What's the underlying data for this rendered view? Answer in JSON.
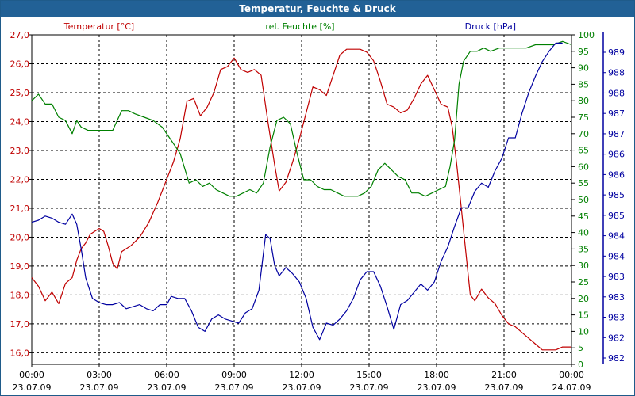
{
  "window": {
    "title": "Temperatur, Feuchte & Druck"
  },
  "colors": {
    "temperature": "#c00000",
    "humidity": "#008000",
    "pressure": "#0000a0",
    "grid": "#000000",
    "title_bar": "#226196"
  },
  "chart_data": {
    "type": "line",
    "title": "Temperatur, Feuchte & Druck",
    "x": {
      "range_hours": [
        0,
        24
      ],
      "ticks": [
        {
          "h": 0,
          "time": "00:00",
          "date": "23.07.09"
        },
        {
          "h": 3,
          "time": "03:00",
          "date": "23.07.09"
        },
        {
          "h": 6,
          "time": "06:00",
          "date": "23.07.09"
        },
        {
          "h": 9,
          "time": "09:00",
          "date": "23.07.09"
        },
        {
          "h": 12,
          "time": "12:00",
          "date": "23.07.09"
        },
        {
          "h": 15,
          "time": "15:00",
          "date": "23.07.09"
        },
        {
          "h": 18,
          "time": "18:00",
          "date": "23.07.09"
        },
        {
          "h": 21,
          "time": "21:00",
          "date": "23.07.09"
        },
        {
          "h": 24,
          "time": "00:00",
          "date": "24.07.09"
        }
      ]
    },
    "axes": {
      "temperature": {
        "label": "Temperatur [°C]",
        "range": [
          15.6,
          27.0
        ],
        "ticks": [
          "16,0",
          "17,0",
          "18,0",
          "19,0",
          "20,0",
          "21,0",
          "22,0",
          "23,0",
          "24,0",
          "25,0",
          "26,0",
          "27,0"
        ]
      },
      "humidity": {
        "label": "rel. Feuchte [%]",
        "range": [
          0,
          100
        ],
        "ticks": [
          "0",
          "5",
          "10",
          "15",
          "20",
          "25",
          "30",
          "35",
          "40",
          "45",
          "50",
          "55",
          "60",
          "65",
          "70",
          "75",
          "80",
          "85",
          "90",
          "95",
          "100"
        ]
      },
      "pressure": {
        "label": "Druck [hPa]",
        "range": [
          981.5,
          989.5
        ],
        "ticks": [
          "982",
          "982",
          "983",
          "983",
          "983",
          "984",
          "984",
          "985",
          "985",
          "986",
          "986",
          "987",
          "987",
          "988",
          "988",
          "989"
        ]
      }
    },
    "grid": true,
    "series": [
      {
        "name": "Temperatur",
        "axis": "temperature",
        "points": [
          [
            0.0,
            18.6
          ],
          [
            0.3,
            18.3
          ],
          [
            0.6,
            17.8
          ],
          [
            0.9,
            18.1
          ],
          [
            1.2,
            17.7
          ],
          [
            1.5,
            18.4
          ],
          [
            1.8,
            18.6
          ],
          [
            2.0,
            19.2
          ],
          [
            2.2,
            19.6
          ],
          [
            2.4,
            19.8
          ],
          [
            2.6,
            20.1
          ],
          [
            2.8,
            20.2
          ],
          [
            3.0,
            20.3
          ],
          [
            3.2,
            20.2
          ],
          [
            3.4,
            19.7
          ],
          [
            3.6,
            19.1
          ],
          [
            3.8,
            18.9
          ],
          [
            4.0,
            19.5
          ],
          [
            4.4,
            19.7
          ],
          [
            4.8,
            20.0
          ],
          [
            5.2,
            20.5
          ],
          [
            5.6,
            21.2
          ],
          [
            6.0,
            22.0
          ],
          [
            6.3,
            22.6
          ],
          [
            6.6,
            23.4
          ],
          [
            6.9,
            24.7
          ],
          [
            7.2,
            24.8
          ],
          [
            7.5,
            24.2
          ],
          [
            7.8,
            24.5
          ],
          [
            8.1,
            25.0
          ],
          [
            8.4,
            25.8
          ],
          [
            8.7,
            25.9
          ],
          [
            9.0,
            26.2
          ],
          [
            9.3,
            25.8
          ],
          [
            9.6,
            25.7
          ],
          [
            9.9,
            25.8
          ],
          [
            10.2,
            25.6
          ],
          [
            10.5,
            24.0
          ],
          [
            10.8,
            22.5
          ],
          [
            11.0,
            21.6
          ],
          [
            11.3,
            21.9
          ],
          [
            11.6,
            22.6
          ],
          [
            11.9,
            23.4
          ],
          [
            12.2,
            24.3
          ],
          [
            12.5,
            25.2
          ],
          [
            12.8,
            25.1
          ],
          [
            13.1,
            24.9
          ],
          [
            13.4,
            25.6
          ],
          [
            13.7,
            26.3
          ],
          [
            14.0,
            26.5
          ],
          [
            14.3,
            26.5
          ],
          [
            14.6,
            26.5
          ],
          [
            14.9,
            26.4
          ],
          [
            15.2,
            26.1
          ],
          [
            15.5,
            25.4
          ],
          [
            15.8,
            24.6
          ],
          [
            16.1,
            24.5
          ],
          [
            16.4,
            24.3
          ],
          [
            16.7,
            24.4
          ],
          [
            17.0,
            24.8
          ],
          [
            17.3,
            25.3
          ],
          [
            17.6,
            25.6
          ],
          [
            17.9,
            25.1
          ],
          [
            18.2,
            24.6
          ],
          [
            18.5,
            24.5
          ],
          [
            18.7,
            23.8
          ],
          [
            18.9,
            22.5
          ],
          [
            19.1,
            21.0
          ],
          [
            19.3,
            19.5
          ],
          [
            19.5,
            18.0
          ],
          [
            19.7,
            17.8
          ],
          [
            20.0,
            18.2
          ],
          [
            20.3,
            17.9
          ],
          [
            20.6,
            17.7
          ],
          [
            20.9,
            17.3
          ],
          [
            21.2,
            17.0
          ],
          [
            21.5,
            16.9
          ],
          [
            21.8,
            16.7
          ],
          [
            22.1,
            16.5
          ],
          [
            22.4,
            16.3
          ],
          [
            22.7,
            16.1
          ],
          [
            23.0,
            16.1
          ],
          [
            23.3,
            16.1
          ],
          [
            23.6,
            16.2
          ],
          [
            24.0,
            16.2
          ]
        ]
      },
      {
        "name": "rel. Feuchte",
        "axis": "humidity",
        "points": [
          [
            0.0,
            80
          ],
          [
            0.3,
            82
          ],
          [
            0.6,
            79
          ],
          [
            0.9,
            79
          ],
          [
            1.2,
            75
          ],
          [
            1.5,
            74
          ],
          [
            1.8,
            70
          ],
          [
            2.0,
            74
          ],
          [
            2.2,
            72
          ],
          [
            2.5,
            71
          ],
          [
            2.8,
            71
          ],
          [
            3.2,
            71
          ],
          [
            3.6,
            71
          ],
          [
            4.0,
            77
          ],
          [
            4.3,
            77
          ],
          [
            4.6,
            76
          ],
          [
            5.0,
            75
          ],
          [
            5.4,
            74
          ],
          [
            5.8,
            72
          ],
          [
            6.2,
            68
          ],
          [
            6.6,
            64
          ],
          [
            7.0,
            55
          ],
          [
            7.3,
            56
          ],
          [
            7.6,
            54
          ],
          [
            7.9,
            55
          ],
          [
            8.2,
            53
          ],
          [
            8.5,
            52
          ],
          [
            8.8,
            51
          ],
          [
            9.1,
            51
          ],
          [
            9.4,
            52
          ],
          [
            9.7,
            53
          ],
          [
            10.0,
            52
          ],
          [
            10.3,
            55
          ],
          [
            10.6,
            66
          ],
          [
            10.9,
            74
          ],
          [
            11.2,
            75
          ],
          [
            11.5,
            73
          ],
          [
            11.8,
            64
          ],
          [
            12.1,
            56
          ],
          [
            12.4,
            56
          ],
          [
            12.7,
            54
          ],
          [
            13.0,
            53
          ],
          [
            13.3,
            53
          ],
          [
            13.6,
            52
          ],
          [
            13.9,
            51
          ],
          [
            14.2,
            51
          ],
          [
            14.5,
            51
          ],
          [
            14.8,
            52
          ],
          [
            15.1,
            54
          ],
          [
            15.4,
            59
          ],
          [
            15.7,
            61
          ],
          [
            16.0,
            59
          ],
          [
            16.3,
            57
          ],
          [
            16.6,
            56
          ],
          [
            16.9,
            52
          ],
          [
            17.2,
            52
          ],
          [
            17.5,
            51
          ],
          [
            17.8,
            52
          ],
          [
            18.1,
            53
          ],
          [
            18.4,
            54
          ],
          [
            18.6,
            60
          ],
          [
            18.8,
            68
          ],
          [
            19.0,
            85
          ],
          [
            19.2,
            92
          ],
          [
            19.5,
            95
          ],
          [
            19.8,
            95
          ],
          [
            20.1,
            96
          ],
          [
            20.4,
            95
          ],
          [
            20.8,
            96
          ],
          [
            21.2,
            96
          ],
          [
            21.6,
            96
          ],
          [
            22.0,
            96
          ],
          [
            22.4,
            97
          ],
          [
            22.8,
            97
          ],
          [
            23.2,
            97
          ],
          [
            23.6,
            98
          ],
          [
            24.0,
            97
          ]
        ]
      },
      {
        "name": "Druck",
        "axis": "pressure",
        "points": [
          [
            0.0,
            984.95
          ],
          [
            0.3,
            985.0
          ],
          [
            0.6,
            985.1
          ],
          [
            0.9,
            985.05
          ],
          [
            1.2,
            984.95
          ],
          [
            1.5,
            984.9
          ],
          [
            1.8,
            985.15
          ],
          [
            2.0,
            984.9
          ],
          [
            2.2,
            984.3
          ],
          [
            2.4,
            983.6
          ],
          [
            2.7,
            983.1
          ],
          [
            3.0,
            983.0
          ],
          [
            3.3,
            982.95
          ],
          [
            3.6,
            982.95
          ],
          [
            3.9,
            983.0
          ],
          [
            4.2,
            982.85
          ],
          [
            4.5,
            982.9
          ],
          [
            4.8,
            982.95
          ],
          [
            5.1,
            982.85
          ],
          [
            5.4,
            982.8
          ],
          [
            5.7,
            982.95
          ],
          [
            6.0,
            982.95
          ],
          [
            6.2,
            983.15
          ],
          [
            6.5,
            983.1
          ],
          [
            6.8,
            983.1
          ],
          [
            7.1,
            982.8
          ],
          [
            7.4,
            982.4
          ],
          [
            7.7,
            982.3
          ],
          [
            8.0,
            982.6
          ],
          [
            8.3,
            982.7
          ],
          [
            8.6,
            982.6
          ],
          [
            8.9,
            982.55
          ],
          [
            9.2,
            982.5
          ],
          [
            9.5,
            982.75
          ],
          [
            9.8,
            982.85
          ],
          [
            10.1,
            983.3
          ],
          [
            10.4,
            984.65
          ],
          [
            10.6,
            984.55
          ],
          [
            10.8,
            983.9
          ],
          [
            11.0,
            983.65
          ],
          [
            11.3,
            983.85
          ],
          [
            11.6,
            983.7
          ],
          [
            11.9,
            983.5
          ],
          [
            12.2,
            983.1
          ],
          [
            12.5,
            982.4
          ],
          [
            12.8,
            982.1
          ],
          [
            13.1,
            982.5
          ],
          [
            13.4,
            982.45
          ],
          [
            13.7,
            982.6
          ],
          [
            14.0,
            982.8
          ],
          [
            14.3,
            983.1
          ],
          [
            14.6,
            983.55
          ],
          [
            14.9,
            983.75
          ],
          [
            15.2,
            983.75
          ],
          [
            15.5,
            983.4
          ],
          [
            15.8,
            982.9
          ],
          [
            16.1,
            982.35
          ],
          [
            16.4,
            982.95
          ],
          [
            16.7,
            983.05
          ],
          [
            17.0,
            983.25
          ],
          [
            17.3,
            983.45
          ],
          [
            17.6,
            983.3
          ],
          [
            17.9,
            983.5
          ],
          [
            18.2,
            984.0
          ],
          [
            18.5,
            984.35
          ],
          [
            18.8,
            984.85
          ],
          [
            19.1,
            985.3
          ],
          [
            19.4,
            985.3
          ],
          [
            19.7,
            985.7
          ],
          [
            20.0,
            985.9
          ],
          [
            20.3,
            985.8
          ],
          [
            20.6,
            986.2
          ],
          [
            20.9,
            986.5
          ],
          [
            21.2,
            987.0
          ],
          [
            21.5,
            987.0
          ],
          [
            21.8,
            987.6
          ],
          [
            22.1,
            988.1
          ],
          [
            22.4,
            988.5
          ],
          [
            22.7,
            988.85
          ],
          [
            23.0,
            989.1
          ],
          [
            23.3,
            989.3
          ],
          [
            23.6,
            989.3
          ]
        ]
      }
    ]
  }
}
